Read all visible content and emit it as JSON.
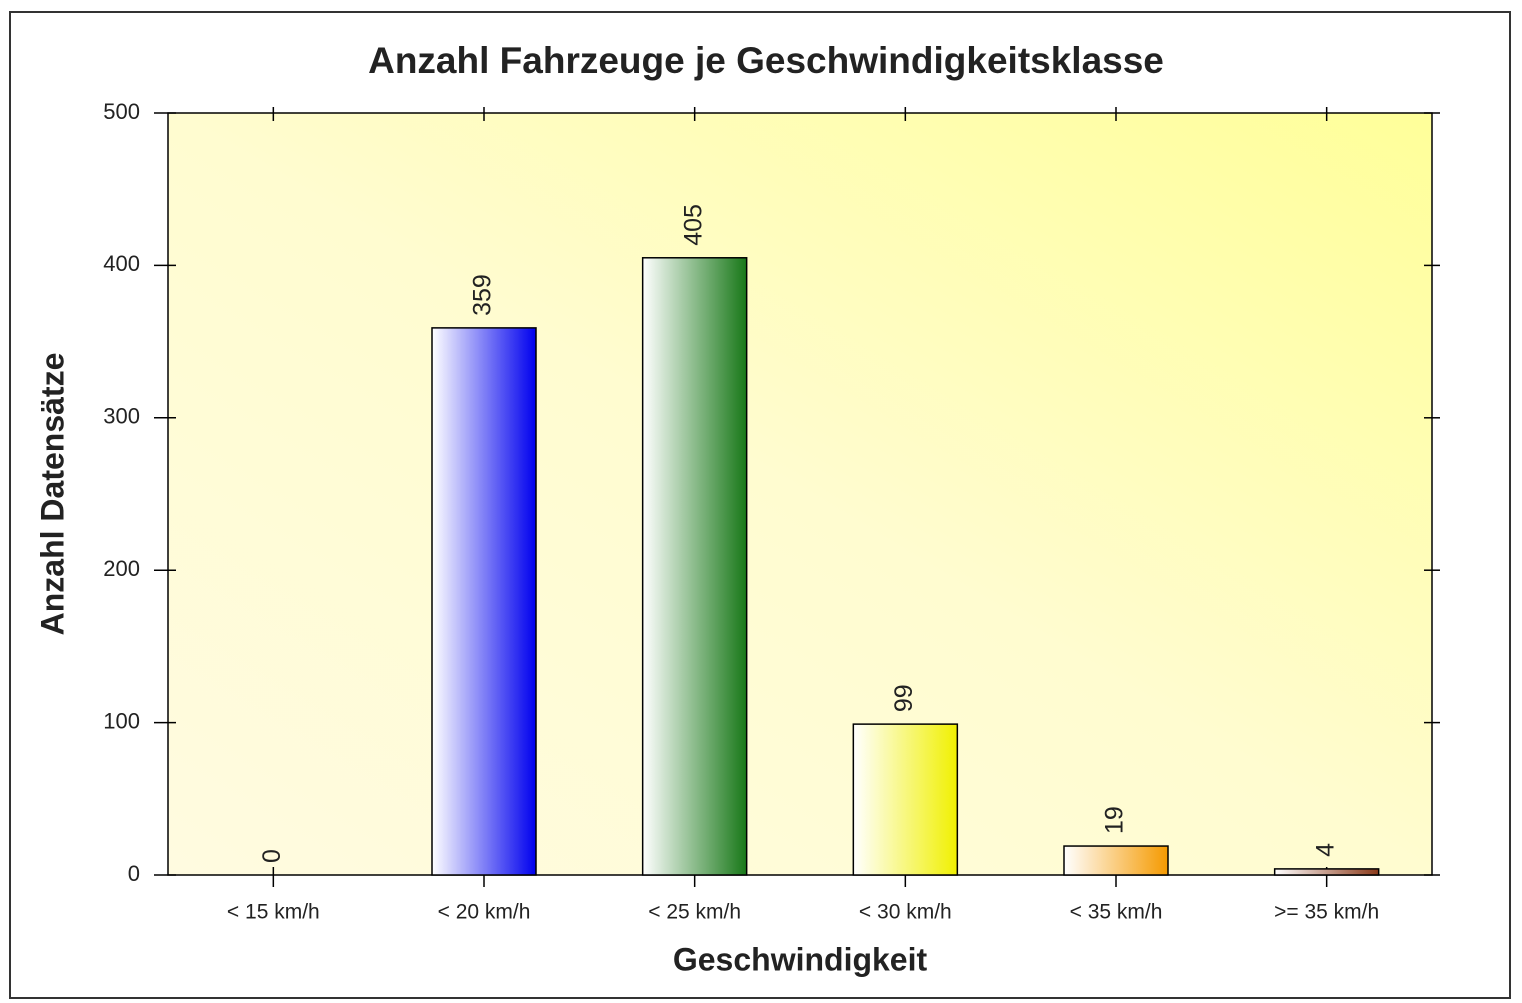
{
  "chart_data": {
    "type": "bar",
    "title": "Anzahl Fahrzeuge je Geschwindigkeitsklasse",
    "x_label": "Geschwindigkeit",
    "y_label": "Anzahl Datensätze",
    "categories": [
      "< 15 km/h",
      "< 20 km/h",
      "< 25 km/h",
      "< 30 km/h",
      "< 35 km/h",
      ">= 35 km/h"
    ],
    "values": [
      0,
      359,
      405,
      99,
      19,
      4
    ],
    "colors": [
      "#808080",
      "#0000ee",
      "#187818",
      "#f0f000",
      "#f59a00",
      "#8b3a1a"
    ],
    "ylim": [
      0,
      500
    ],
    "yticks": [
      0,
      100,
      200,
      300,
      400,
      500
    ]
  }
}
